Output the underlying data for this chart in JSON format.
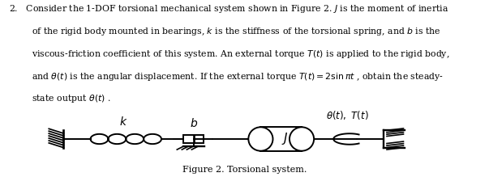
{
  "title_text": "Figure 2. Torsional system.",
  "bg_color": "#ffffff",
  "text_color": "#000000",
  "lw": 1.4
}
